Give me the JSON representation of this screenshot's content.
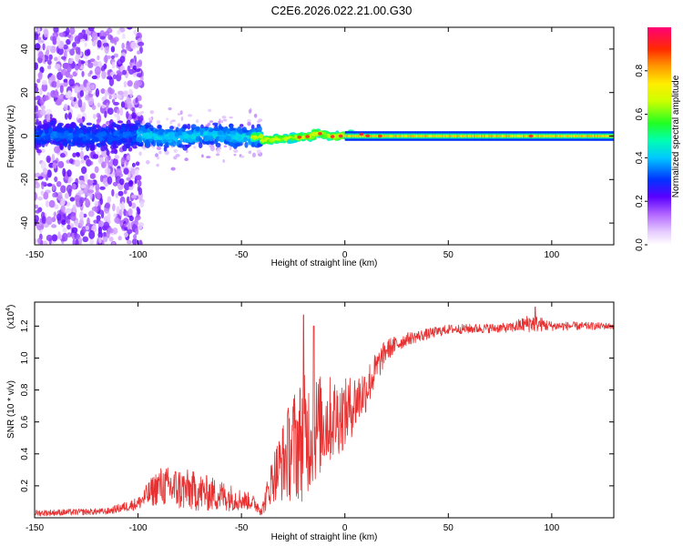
{
  "title": "C2E6.2026.022.21.00.G30",
  "colors": {
    "snr_line": "#e83030",
    "frame": "#000000",
    "peak": "#e83030"
  },
  "chart_data": [
    {
      "type": "heatmap",
      "name": "spectrogram",
      "xlabel": "Height of straight line (km)",
      "ylabel": "Frequency (Hz)",
      "xlim": [
        -150,
        130
      ],
      "ylim": [
        -50,
        50
      ],
      "x_ticks": [
        "-150",
        "-100",
        "-50",
        "0",
        "50",
        "100"
      ],
      "x_tick_values": [
        -150,
        -100,
        -50,
        0,
        50,
        100
      ],
      "y_ticks": [
        "-40",
        "-20",
        "0",
        "20",
        "40"
      ],
      "y_tick_values": [
        -40,
        -20,
        0,
        20,
        40
      ],
      "colorbar": {
        "label": "Normalized spectral amplitude",
        "range": [
          0,
          1
        ],
        "ticks": [
          "0.0",
          "0.2",
          "0.4",
          "0.6",
          "0.8"
        ],
        "tick_values": [
          0.0,
          0.2,
          0.4,
          0.6,
          0.8
        ]
      },
      "description_regions": [
        {
          "x_range": [
            -150,
            -100
          ],
          "freq_spread_hz": 50,
          "amplitude": 0.2
        },
        {
          "x_range": [
            -100,
            -40
          ],
          "freq_spread_hz": 10,
          "amplitude": 0.35
        },
        {
          "x_range": [
            -40,
            0
          ],
          "freq_spread_hz": 4,
          "amplitude": 0.7
        },
        {
          "x_range": [
            0,
            130
          ],
          "freq_spread_hz": 2,
          "amplitude": 0.9
        }
      ]
    },
    {
      "type": "line",
      "name": "snr",
      "xlabel": "Height of straight line (km)",
      "ylabel": "SNR (10 * v/v)",
      "y_multiplier": "(x10",
      "y_multiplier_exp": "4",
      "y_multiplier_close": ")",
      "xlim": [
        -150,
        130
      ],
      "ylim": [
        0,
        1.35
      ],
      "x_ticks": [
        "-150",
        "-100",
        "-50",
        "0",
        "50",
        "100"
      ],
      "x_tick_values": [
        -150,
        -100,
        -50,
        0,
        50,
        100
      ],
      "y_ticks": [
        "0.2",
        "0.4",
        "0.6",
        "0.8",
        "1.0",
        "1.2"
      ],
      "y_tick_values": [
        0.2,
        0.4,
        0.6,
        0.8,
        1.0,
        1.2
      ],
      "envelope": [
        {
          "x": -150,
          "y": 0.03,
          "noise": 0.02
        },
        {
          "x": -115,
          "y": 0.04,
          "noise": 0.02
        },
        {
          "x": -100,
          "y": 0.09,
          "noise": 0.04
        },
        {
          "x": -90,
          "y": 0.2,
          "noise": 0.12
        },
        {
          "x": -80,
          "y": 0.18,
          "noise": 0.14
        },
        {
          "x": -60,
          "y": 0.14,
          "noise": 0.1
        },
        {
          "x": -45,
          "y": 0.1,
          "noise": 0.05
        },
        {
          "x": -40,
          "y": 0.05,
          "noise": 0.04
        },
        {
          "x": -35,
          "y": 0.25,
          "noise": 0.15
        },
        {
          "x": -25,
          "y": 0.45,
          "noise": 0.35
        },
        {
          "x": -20,
          "y": 0.5,
          "noise": 0.4
        },
        {
          "x": -10,
          "y": 0.6,
          "noise": 0.3
        },
        {
          "x": 0,
          "y": 0.65,
          "noise": 0.22
        },
        {
          "x": 10,
          "y": 0.8,
          "noise": 0.15
        },
        {
          "x": 20,
          "y": 1.05,
          "noise": 0.07
        },
        {
          "x": 30,
          "y": 1.12,
          "noise": 0.04
        },
        {
          "x": 50,
          "y": 1.18,
          "noise": 0.03
        },
        {
          "x": 80,
          "y": 1.19,
          "noise": 0.03
        },
        {
          "x": 90,
          "y": 1.22,
          "noise": 0.06
        },
        {
          "x": 100,
          "y": 1.2,
          "noise": 0.03
        },
        {
          "x": 130,
          "y": 1.2,
          "noise": 0.02
        }
      ],
      "spikes": [
        {
          "x": -20,
          "y": 1.27
        },
        {
          "x": -15,
          "y": 1.2
        },
        {
          "x": 92,
          "y": 1.32
        }
      ]
    }
  ]
}
